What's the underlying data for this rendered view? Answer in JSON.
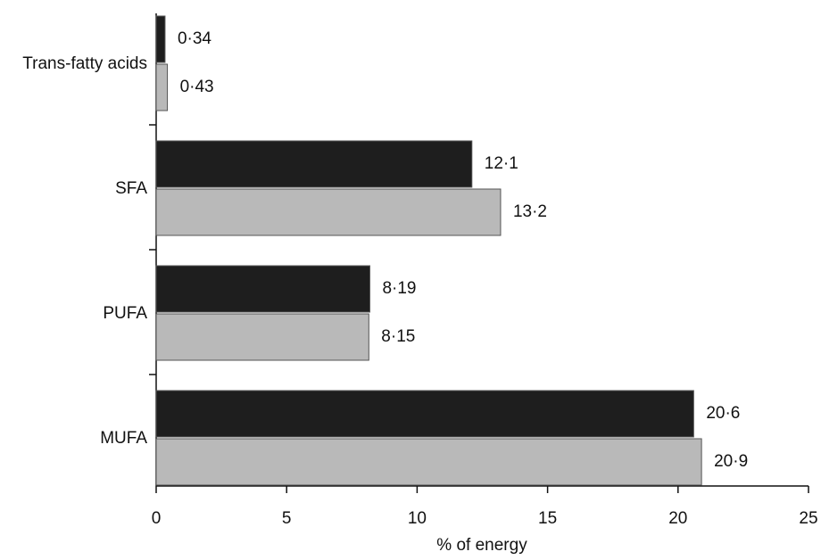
{
  "chart_data": {
    "type": "bar",
    "orientation": "horizontal",
    "xlabel": "% of energy",
    "categories": [
      "Trans-fatty acids",
      "SFA",
      "PUFA",
      "MUFA"
    ],
    "series": [
      {
        "color": "#1e1e1e",
        "values": [
          0.34,
          12.1,
          8.19,
          20.6
        ],
        "value_labels": [
          "0·34",
          "12·1",
          "8·19",
          "20·6"
        ]
      },
      {
        "color": "#b9b9b9",
        "values": [
          0.43,
          13.2,
          8.15,
          20.9
        ],
        "value_labels": [
          "0·43",
          "13·2",
          "8·15",
          "20·9"
        ]
      }
    ],
    "xlim": [
      0,
      25
    ],
    "xticks": [
      0,
      5,
      10,
      15,
      20,
      25
    ]
  }
}
